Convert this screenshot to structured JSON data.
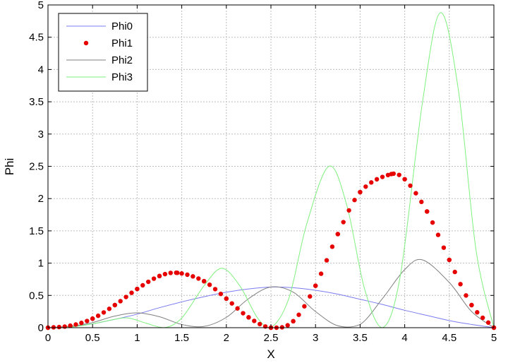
{
  "chart_data": {
    "type": "line",
    "title": "",
    "xlabel": "X",
    "ylabel": "Phi",
    "xlim": [
      0,
      5
    ],
    "ylim": [
      0,
      5
    ],
    "xticks": [
      "0",
      "0.5",
      "1",
      "1.5",
      "2",
      "2.5",
      "3",
      "3.5",
      "4",
      "4.5",
      "5"
    ],
    "yticks": [
      "0",
      "0.5",
      "1",
      "1.5",
      "2",
      "2.5",
      "3",
      "3.5",
      "4",
      "4.5",
      "5"
    ],
    "grid": true,
    "legend_position": "top-left",
    "series": [
      {
        "name": "Phi0",
        "style": "line",
        "color": "#7b7bf0",
        "x": [
          0,
          0.25,
          0.5,
          0.75,
          1,
          1.25,
          1.5,
          1.75,
          2,
          2.25,
          2.5,
          2.75,
          3,
          3.25,
          3.5,
          3.75,
          4,
          4.25,
          4.5,
          4.75,
          5
        ],
        "y": [
          0,
          0.02,
          0.06,
          0.13,
          0.21,
          0.31,
          0.4,
          0.48,
          0.55,
          0.6,
          0.63,
          0.62,
          0.58,
          0.52,
          0.44,
          0.36,
          0.27,
          0.19,
          0.11,
          0.05,
          0
        ]
      },
      {
        "name": "Phi1",
        "style": "dots",
        "color": "#e60000",
        "x": [
          0,
          0.25,
          0.5,
          0.75,
          1,
          1.25,
          1.45,
          1.75,
          2,
          2.25,
          2.5,
          2.75,
          3,
          3.25,
          3.5,
          3.85,
          4,
          4.25,
          4.5,
          4.75,
          5
        ],
        "y": [
          0,
          0.03,
          0.14,
          0.35,
          0.6,
          0.8,
          0.85,
          0.72,
          0.45,
          0.16,
          0,
          0.1,
          0.65,
          1.45,
          2.1,
          2.38,
          2.3,
          1.8,
          1.05,
          0.35,
          0
        ]
      },
      {
        "name": "Phi2",
        "style": "line",
        "color": "#7f7f7f",
        "x": [
          0,
          0.25,
          0.5,
          0.75,
          1,
          1.25,
          1.5,
          1.75,
          2,
          2.25,
          2.5,
          2.75,
          3,
          3.25,
          3.5,
          3.75,
          4,
          4.2,
          4.5,
          4.75,
          5
        ],
        "y": [
          0,
          0.02,
          0.08,
          0.18,
          0.23,
          0.17,
          0.05,
          0.02,
          0.16,
          0.45,
          0.63,
          0.55,
          0.25,
          0.03,
          0.05,
          0.45,
          0.9,
          1.05,
          0.7,
          0.25,
          0
        ]
      },
      {
        "name": "Phi3",
        "style": "line",
        "color": "#7ff07f",
        "x": [
          0,
          0.25,
          0.5,
          0.75,
          0.9,
          1.1,
          1.3,
          1.5,
          1.75,
          1.95,
          2.15,
          2.35,
          2.5,
          2.7,
          2.9,
          3.15,
          3.35,
          3.55,
          3.75,
          3.95,
          4.2,
          4.4,
          4.6,
          4.8,
          5
        ],
        "y": [
          0,
          0.01,
          0.06,
          0.13,
          0.15,
          0.07,
          0,
          0.15,
          0.65,
          0.92,
          0.65,
          0.15,
          0,
          0.45,
          1.6,
          2.5,
          1.9,
          0.6,
          0,
          0.8,
          3.5,
          4.88,
          3.7,
          1.2,
          0
        ]
      }
    ]
  }
}
